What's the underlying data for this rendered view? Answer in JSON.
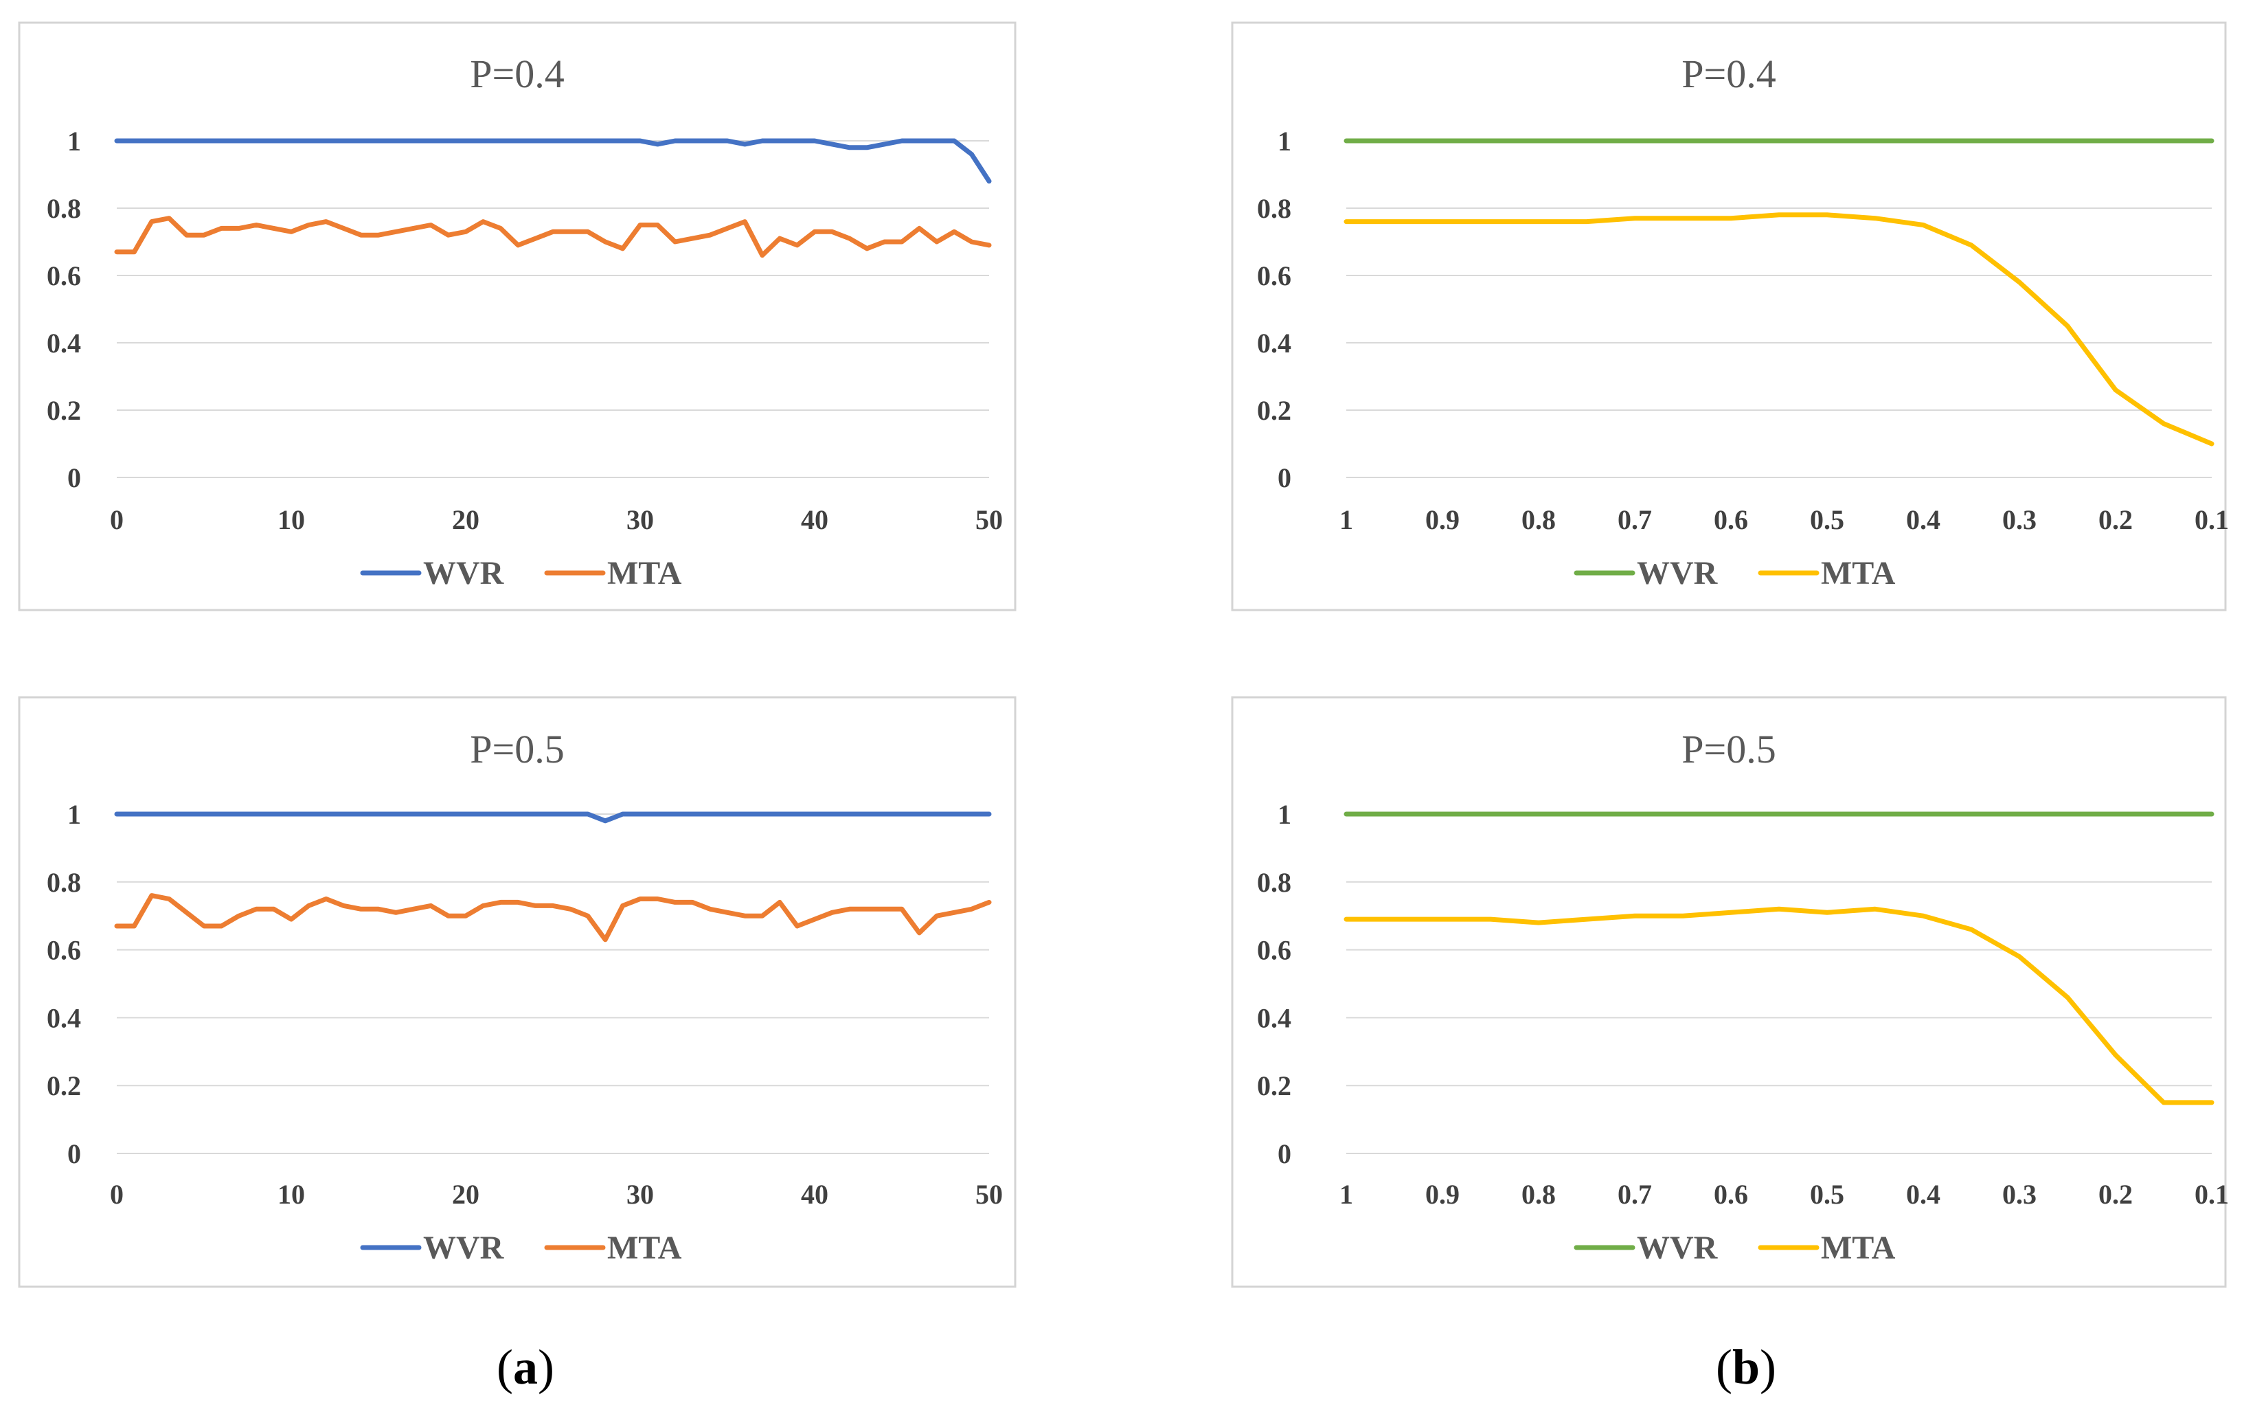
{
  "captions": [
    {
      "open": "(",
      "letter": "a",
      "close": ")"
    },
    {
      "open": "(",
      "letter": "b",
      "close": ")"
    }
  ],
  "colors": {
    "wvr_a": "#4472C4",
    "mta_a": "#ED7D31",
    "wvr_b": "#70AD47",
    "mta_b": "#FFC000"
  },
  "chart_data": [
    {
      "type": "line",
      "title": "P=0.4",
      "x_type": "numeric",
      "x": [
        0,
        1,
        2,
        3,
        4,
        5,
        6,
        7,
        8,
        9,
        10,
        11,
        12,
        13,
        14,
        15,
        16,
        17,
        18,
        19,
        20,
        21,
        22,
        23,
        24,
        25,
        26,
        27,
        28,
        29,
        30,
        31,
        32,
        33,
        34,
        35,
        36,
        37,
        38,
        39,
        40,
        41,
        42,
        43,
        44,
        45,
        46,
        47,
        48,
        49,
        50
      ],
      "xlim": [
        0,
        50
      ],
      "xticks": [
        "0",
        "10",
        "20",
        "30",
        "40",
        "50"
      ],
      "ylim": [
        0,
        1
      ],
      "yticks": [
        "0",
        "0.2",
        "0.4",
        "0.6",
        "0.8",
        "1"
      ],
      "legend_position": "bottom",
      "series": [
        {
          "name": "WVR",
          "color": "#4472C4",
          "values": [
            1,
            1,
            1,
            1,
            1,
            1,
            1,
            1,
            1,
            1,
            1,
            1,
            1,
            1,
            1,
            1,
            1,
            1,
            1,
            1,
            1,
            1,
            1,
            1,
            1,
            1,
            1,
            1,
            1,
            1,
            1,
            0.99,
            1,
            1,
            1,
            1,
            0.99,
            1,
            1,
            1,
            1,
            0.99,
            0.98,
            0.98,
            0.99,
            1,
            1,
            1,
            1,
            0.96,
            0.88
          ]
        },
        {
          "name": "MTA",
          "color": "#ED7D31",
          "values": [
            0.67,
            0.67,
            0.76,
            0.77,
            0.72,
            0.72,
            0.74,
            0.74,
            0.75,
            0.74,
            0.73,
            0.75,
            0.76,
            0.74,
            0.72,
            0.72,
            0.73,
            0.74,
            0.75,
            0.72,
            0.73,
            0.76,
            0.74,
            0.69,
            0.71,
            0.73,
            0.73,
            0.73,
            0.7,
            0.68,
            0.75,
            0.75,
            0.7,
            0.71,
            0.72,
            0.74,
            0.76,
            0.66,
            0.71,
            0.69,
            0.73,
            0.73,
            0.71,
            0.68,
            0.7,
            0.7,
            0.74,
            0.7,
            0.73,
            0.7,
            0.69
          ]
        }
      ]
    },
    {
      "type": "line",
      "title": "P=0.4",
      "x_type": "category",
      "categories": [
        "1",
        "",
        "0.9",
        "",
        "0.8",
        "",
        "0.7",
        "",
        "0.6",
        "",
        "0.5",
        "",
        "0.4",
        "",
        "0.3",
        "",
        "0.2",
        "",
        "0.1"
      ],
      "xticks": [
        "1",
        "0.9",
        "0.8",
        "0.7",
        "0.6",
        "0.5",
        "0.4",
        "0.3",
        "0.2",
        "0.1"
      ],
      "ylim": [
        0,
        1
      ],
      "yticks": [
        "0",
        "0.2",
        "0.4",
        "0.6",
        "0.8",
        "1"
      ],
      "legend_position": "bottom",
      "series": [
        {
          "name": "WVR",
          "color": "#70AD47",
          "values": [
            1,
            1,
            1,
            1,
            1,
            1,
            1,
            1,
            1,
            1,
            1,
            1,
            1,
            1,
            1,
            1,
            1,
            1,
            1
          ]
        },
        {
          "name": "MTA",
          "color": "#FFC000",
          "values": [
            0.76,
            0.76,
            0.76,
            0.76,
            0.76,
            0.76,
            0.77,
            0.77,
            0.77,
            0.78,
            0.78,
            0.77,
            0.75,
            0.69,
            0.58,
            0.45,
            0.26,
            0.16,
            0.1
          ]
        }
      ]
    },
    {
      "type": "line",
      "title": "P=0.5",
      "x_type": "numeric",
      "x": [
        0,
        1,
        2,
        3,
        4,
        5,
        6,
        7,
        8,
        9,
        10,
        11,
        12,
        13,
        14,
        15,
        16,
        17,
        18,
        19,
        20,
        21,
        22,
        23,
        24,
        25,
        26,
        27,
        28,
        29,
        30,
        31,
        32,
        33,
        34,
        35,
        36,
        37,
        38,
        39,
        40,
        41,
        42,
        43,
        44,
        45,
        46,
        47,
        48,
        49,
        50
      ],
      "xlim": [
        0,
        50
      ],
      "xticks": [
        "0",
        "10",
        "20",
        "30",
        "40",
        "50"
      ],
      "ylim": [
        0,
        1
      ],
      "yticks": [
        "0",
        "0.2",
        "0.4",
        "0.6",
        "0.8",
        "1"
      ],
      "legend_position": "bottom",
      "series": [
        {
          "name": "WVR",
          "color": "#4472C4",
          "values": [
            1,
            1,
            1,
            1,
            1,
            1,
            1,
            1,
            1,
            1,
            1,
            1,
            1,
            1,
            1,
            1,
            1,
            1,
            1,
            1,
            1,
            1,
            1,
            1,
            1,
            1,
            1,
            1,
            0.98,
            1,
            1,
            1,
            1,
            1,
            1,
            1,
            1,
            1,
            1,
            1,
            1,
            1,
            1,
            1,
            1,
            1,
            1,
            1,
            1,
            1,
            1
          ]
        },
        {
          "name": "MTA",
          "color": "#ED7D31",
          "values": [
            0.67,
            0.67,
            0.76,
            0.75,
            0.71,
            0.67,
            0.67,
            0.7,
            0.72,
            0.72,
            0.69,
            0.73,
            0.75,
            0.73,
            0.72,
            0.72,
            0.71,
            0.72,
            0.73,
            0.7,
            0.7,
            0.73,
            0.74,
            0.74,
            0.73,
            0.73,
            0.72,
            0.7,
            0.63,
            0.73,
            0.75,
            0.75,
            0.74,
            0.74,
            0.72,
            0.71,
            0.7,
            0.7,
            0.74,
            0.67,
            0.69,
            0.71,
            0.72,
            0.72,
            0.72,
            0.72,
            0.65,
            0.7,
            0.71,
            0.72,
            0.74
          ]
        }
      ]
    },
    {
      "type": "line",
      "title": "P=0.5",
      "x_type": "category",
      "categories": [
        "1",
        "",
        "0.9",
        "",
        "0.8",
        "",
        "0.7",
        "",
        "0.6",
        "",
        "0.5",
        "",
        "0.4",
        "",
        "0.3",
        "",
        "0.2",
        "",
        "0.1"
      ],
      "xticks": [
        "1",
        "0.9",
        "0.8",
        "0.7",
        "0.6",
        "0.5",
        "0.4",
        "0.3",
        "0.2",
        "0.1"
      ],
      "ylim": [
        0,
        1
      ],
      "yticks": [
        "0",
        "0.2",
        "0.4",
        "0.6",
        "0.8",
        "1"
      ],
      "legend_position": "bottom",
      "series": [
        {
          "name": "WVR",
          "color": "#70AD47",
          "values": [
            1,
            1,
            1,
            1,
            1,
            1,
            1,
            1,
            1,
            1,
            1,
            1,
            1,
            1,
            1,
            1,
            1,
            1,
            1
          ]
        },
        {
          "name": "MTA",
          "color": "#FFC000",
          "values": [
            0.69,
            0.69,
            0.69,
            0.69,
            0.68,
            0.69,
            0.7,
            0.7,
            0.71,
            0.72,
            0.71,
            0.72,
            0.7,
            0.66,
            0.58,
            0.46,
            0.29,
            0.15,
            0.15
          ]
        }
      ]
    }
  ]
}
